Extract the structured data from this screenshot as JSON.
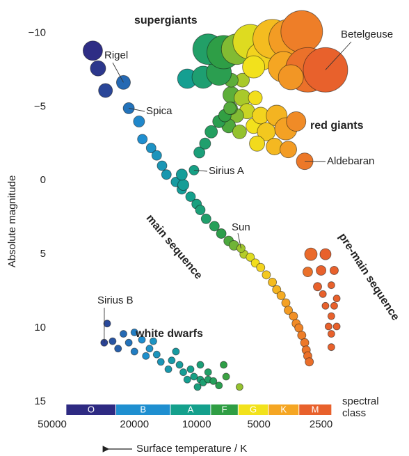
{
  "chart_data": {
    "type": "bubble",
    "y_label": "Absolute magnitude",
    "x_label": "Surface temperature / K",
    "xscale": "log",
    "xlim": [
      50000,
      1900
    ],
    "xticks": [
      50000,
      20000,
      10000,
      5000,
      2500
    ],
    "ylim": [
      15,
      -12
    ],
    "yticks": [
      {
        "value": -10,
        "label": "−10"
      },
      {
        "value": -5,
        "label": "−5"
      },
      0,
      5,
      10,
      15
    ],
    "series": [
      {
        "name": "main sequence",
        "x": [
          31800,
          30000,
          27600,
          19000,
          18300,
          16600,
          15600,
          14700,
          14000,
          12600,
          11800,
          10700,
          10000,
          9600,
          9000,
          8200,
          7600,
          7000,
          6600,
          5900,
          5500,
          5200,
          4900,
          4600,
          4300,
          4100,
          3900,
          3700,
          3600,
          3400,
          3300,
          3200,
          3100,
          3000,
          2950,
          2900,
          2850
        ],
        "values": [
          -8.8,
          -7.6,
          -6.1,
          -4.0,
          -2.8,
          -2.2,
          -1.7,
          -1.0,
          -0.4,
          0.1,
          0.6,
          1.1,
          1.6,
          2.0,
          2.6,
          3.1,
          3.6,
          4.1,
          4.4,
          5.0,
          5.2,
          5.6,
          5.9,
          6.4,
          6.9,
          7.4,
          7.8,
          8.3,
          8.8,
          9.2,
          9.7,
          10.0,
          10.5,
          11.0,
          11.5,
          11.9,
          12.3
        ],
        "sizes": [
          14,
          11,
          10,
          8,
          7,
          7,
          7,
          7,
          7,
          7,
          7,
          7,
          7,
          7,
          7,
          7,
          7,
          7,
          7,
          6,
          6,
          6,
          6,
          6,
          6,
          6,
          6,
          6,
          6,
          6,
          6,
          6,
          6,
          6,
          6,
          6,
          6
        ]
      },
      {
        "name": "red giants",
        "x": [
          6800,
          6000,
          5700,
          6400,
          7000,
          6200,
          5300,
          4900,
          4600,
          4100,
          3700,
          3300,
          4200,
          3600,
          5100,
          6800,
          5200,
          6000,
          6800,
          11600,
          11800,
          9700,
          9100,
          8500,
          7800,
          7300,
          6900
        ],
        "values": [
          -5.8,
          -5.6,
          -4.7,
          -4.4,
          -3.7,
          -3.3,
          -3.7,
          -4.4,
          -3.3,
          -4.4,
          -3.5,
          -4.0,
          -2.3,
          -2.1,
          -2.5,
          -4.9,
          -5.6,
          -6.8,
          -6.8,
          0.3,
          -0.4,
          -1.9,
          -2.5,
          -3.3,
          -4.0,
          -4.4,
          -4.9
        ],
        "sizes": [
          12,
          12,
          11,
          10,
          10,
          10,
          11,
          12,
          13,
          15,
          16,
          14,
          12,
          12,
          11,
          9,
          10,
          10,
          10,
          8,
          8,
          8,
          8,
          9,
          9,
          9,
          9
        ]
      },
      {
        "name": "supergiants",
        "x": [
          11100,
          9300,
          7800,
          8800,
          7400,
          6400,
          5500,
          4900,
          4300,
          3600,
          3800,
          3100,
          2900,
          5300,
          3500
        ],
        "values": [
          -6.9,
          -7.0,
          -7.3,
          -8.9,
          -8.7,
          -8.9,
          -9.4,
          -8.4,
          -9.6,
          -9.6,
          -7.7,
          -10.1,
          -7.5,
          -7.7,
          -7.0
        ],
        "sizes": [
          14,
          16,
          18,
          22,
          24,
          22,
          25,
          20,
          28,
          28,
          22,
          30,
          32,
          16,
          18
        ]
      },
      {
        "name": "white dwarfs",
        "x": [
          27100,
          22600,
          20000,
          25500,
          21300,
          18400,
          16900,
          20000,
          24000,
          17600,
          15600,
          14900,
          13200,
          13700,
          12100,
          11600,
          10700,
          10300,
          11100,
          9600,
          9300,
          8800,
          9900,
          8300,
          7800,
          7200,
          7400,
          9600,
          12600,
          6200,
          8800,
          16200
        ],
        "values": [
          9.7,
          10.4,
          10.3,
          10.9,
          11.0,
          10.8,
          11.4,
          11.6,
          11.4,
          11.9,
          11.8,
          12.3,
          12.2,
          12.8,
          12.5,
          13.0,
          12.8,
          13.3,
          13.5,
          13.5,
          13.7,
          13.5,
          14.0,
          13.6,
          13.9,
          13.3,
          12.5,
          12.5,
          11.6,
          14.0,
          13.0,
          10.9
        ],
        "sizes": [
          5,
          5,
          5,
          5,
          5,
          5,
          5,
          5,
          5,
          5,
          5,
          5,
          5,
          5,
          5,
          5,
          5,
          5,
          5,
          5,
          5,
          5,
          5,
          5,
          5,
          5,
          5,
          5,
          5,
          5,
          5,
          5
        ]
      },
      {
        "name": "pre-main sequence",
        "x": [
          2800,
          2380,
          2900,
          2500,
          2160,
          2600,
          2230,
          2450,
          2100,
          2380,
          2160,
          2230,
          2300,
          2100,
          2230,
          2230
        ],
        "values": [
          5.0,
          5.0,
          6.2,
          6.1,
          6.1,
          7.2,
          7.1,
          7.7,
          8.0,
          8.5,
          8.5,
          9.2,
          9.9,
          9.9,
          10.4,
          11.3
        ],
        "sizes": [
          9,
          8,
          7,
          7,
          6,
          6,
          5,
          5,
          5,
          5,
          5,
          5,
          5,
          5,
          5,
          5
        ]
      }
    ],
    "labelled_stars": {
      "names": [
        "Rigel",
        "Spica",
        "Sirius A",
        "Sun",
        "Betelgeuse",
        "Aldebaran",
        "Sirius B"
      ],
      "x": [
        22600,
        21300,
        10300,
        6100,
        2380,
        3000,
        28000
      ],
      "values": [
        -6.65,
        -4.9,
        -0.7,
        4.6,
        -7.5,
        -1.3,
        11.0
      ],
      "sizes": [
        10,
        8,
        7,
        6,
        32,
        12,
        5
      ]
    },
    "spectral_classes": {
      "names": [
        "O",
        "B",
        "A",
        "F",
        "G",
        "K",
        "M"
      ],
      "colors": [
        "#2e2a82",
        "#1f8fd0",
        "#14a08c",
        "#2f9e44",
        "#f2e21c",
        "#f5a623",
        "#e8612c"
      ],
      "edges": [
        42700,
        24600,
        13400,
        8550,
        6300,
        4500,
        3200,
        2230
      ]
    },
    "spectral_label": "spectral class"
  }
}
